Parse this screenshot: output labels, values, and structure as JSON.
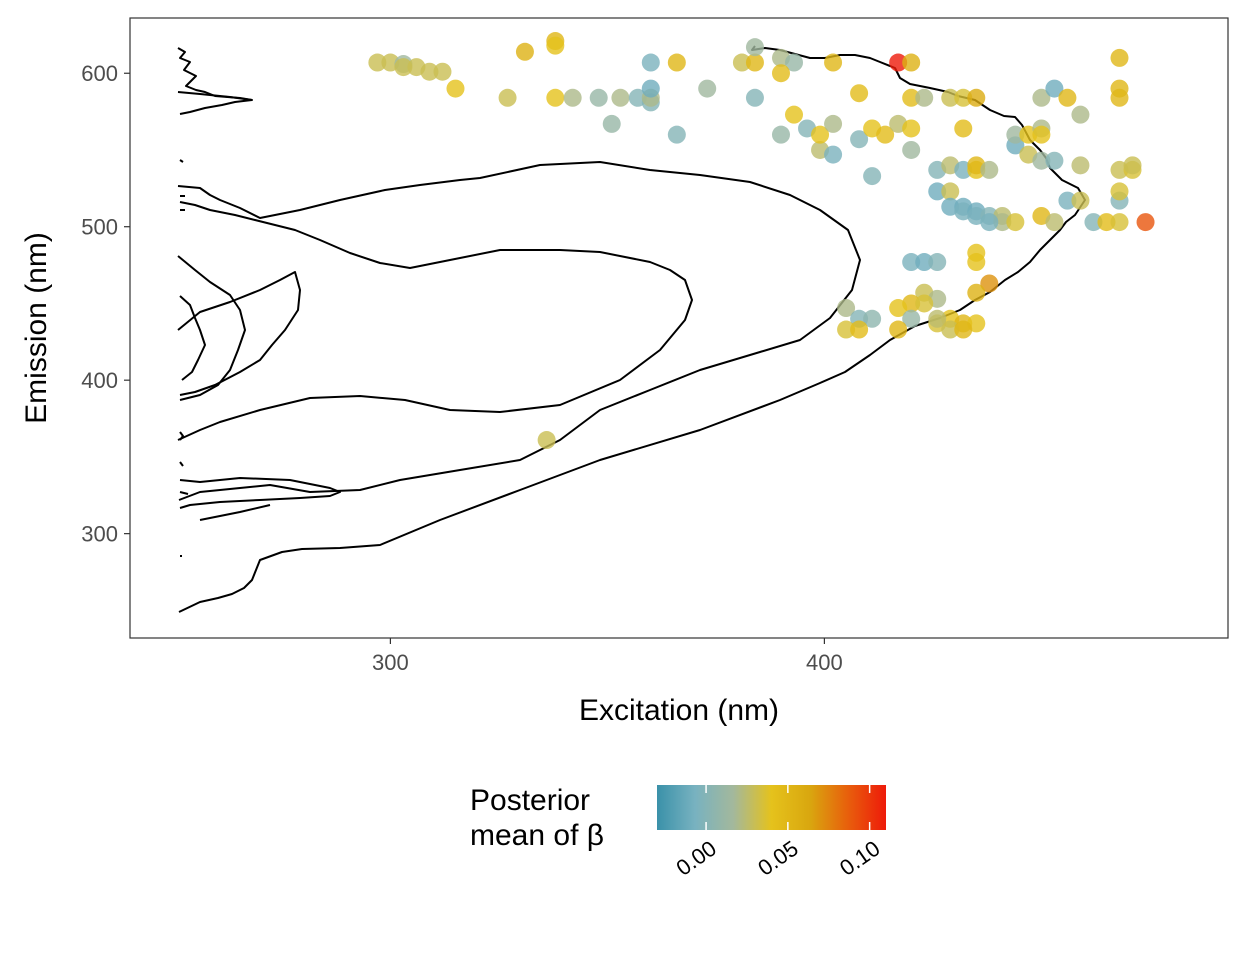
{
  "chart_data": {
    "type": "scatter",
    "xlabel": "Excitation (nm)",
    "ylabel": "Emission (nm)",
    "xlim": [
      240,
      493
    ],
    "ylim": [
      232,
      636
    ],
    "x_ticks": [
      300,
      400
    ],
    "y_ticks": [
      300,
      400,
      500,
      600
    ],
    "grid": false,
    "legend": {
      "title_lines": [
        "Posterior",
        "mean of β"
      ],
      "placement": "bottom",
      "range": [
        -0.03,
        0.11
      ],
      "ticks": [
        0.0,
        0.05,
        0.1
      ],
      "tick_labels": [
        "0.00",
        "0.05",
        "0.10"
      ],
      "colors": [
        "#3a91a9",
        "#78b2c0",
        "#a3b89c",
        "#e5c21c",
        "#d9a70f",
        "#e85f0c",
        "#ee1a0a"
      ]
    },
    "points": [
      {
        "x": 297,
        "y": 607,
        "b": 0.03
      },
      {
        "x": 300,
        "y": 607,
        "b": 0.03
      },
      {
        "x": 303,
        "y": 606,
        "b": 0.015
      },
      {
        "x": 303,
        "y": 604,
        "b": 0.03
      },
      {
        "x": 306,
        "y": 604,
        "b": 0.03
      },
      {
        "x": 309,
        "y": 601,
        "b": 0.03
      },
      {
        "x": 312,
        "y": 601,
        "b": 0.03
      },
      {
        "x": 315,
        "y": 590,
        "b": 0.04
      },
      {
        "x": 331,
        "y": 614,
        "b": 0.055
      },
      {
        "x": 338,
        "y": 621,
        "b": 0.05
      },
      {
        "x": 338,
        "y": 618,
        "b": 0.04
      },
      {
        "x": 327,
        "y": 584,
        "b": 0.03
      },
      {
        "x": 338,
        "y": 584,
        "b": 0.04
      },
      {
        "x": 342,
        "y": 584,
        "b": 0.02
      },
      {
        "x": 348,
        "y": 584,
        "b": 0.01
      },
      {
        "x": 353,
        "y": 584,
        "b": 0.02
      },
      {
        "x": 357,
        "y": 584,
        "b": 0.0
      },
      {
        "x": 360,
        "y": 581,
        "b": 0.0
      },
      {
        "x": 360,
        "y": 584,
        "b": 0.02
      },
      {
        "x": 360,
        "y": 607,
        "b": -0.005
      },
      {
        "x": 360,
        "y": 590,
        "b": -0.01
      },
      {
        "x": 351,
        "y": 567,
        "b": 0.01
      },
      {
        "x": 366,
        "y": 607,
        "b": 0.05
      },
      {
        "x": 366,
        "y": 560,
        "b": 0.0
      },
      {
        "x": 373,
        "y": 590,
        "b": 0.015
      },
      {
        "x": 381,
        "y": 607,
        "b": 0.03
      },
      {
        "x": 384,
        "y": 607,
        "b": 0.05
      },
      {
        "x": 384,
        "y": 617,
        "b": 0.015
      },
      {
        "x": 384,
        "y": 584,
        "b": 0.0
      },
      {
        "x": 390,
        "y": 610,
        "b": 0.02
      },
      {
        "x": 393,
        "y": 607,
        "b": 0.01
      },
      {
        "x": 390,
        "y": 600,
        "b": 0.045
      },
      {
        "x": 390,
        "y": 560,
        "b": 0.01
      },
      {
        "x": 393,
        "y": 573,
        "b": 0.04
      },
      {
        "x": 396,
        "y": 564,
        "b": 0.0
      },
      {
        "x": 399,
        "y": 550,
        "b": 0.025
      },
      {
        "x": 399,
        "y": 560,
        "b": 0.04
      },
      {
        "x": 402,
        "y": 567,
        "b": 0.02
      },
      {
        "x": 402,
        "y": 607,
        "b": 0.05
      },
      {
        "x": 402,
        "y": 547,
        "b": -0.005
      },
      {
        "x": 408,
        "y": 587,
        "b": 0.045
      },
      {
        "x": 408,
        "y": 557,
        "b": 0.0
      },
      {
        "x": 411,
        "y": 564,
        "b": 0.04
      },
      {
        "x": 414,
        "y": 560,
        "b": 0.045
      },
      {
        "x": 411,
        "y": 533,
        "b": 0.0
      },
      {
        "x": 417,
        "y": 607,
        "b": 0.11
      },
      {
        "x": 420,
        "y": 607,
        "b": 0.055
      },
      {
        "x": 417,
        "y": 567,
        "b": 0.025
      },
      {
        "x": 420,
        "y": 564,
        "b": 0.04
      },
      {
        "x": 420,
        "y": 550,
        "b": 0.015
      },
      {
        "x": 420,
        "y": 584,
        "b": 0.045
      },
      {
        "x": 423,
        "y": 584,
        "b": 0.02
      },
      {
        "x": 429,
        "y": 584,
        "b": 0.03
      },
      {
        "x": 432,
        "y": 584,
        "b": 0.035
      },
      {
        "x": 435,
        "y": 584,
        "b": 0.06
      },
      {
        "x": 432,
        "y": 564,
        "b": 0.045
      },
      {
        "x": 426,
        "y": 537,
        "b": 0.0
      },
      {
        "x": 426,
        "y": 523,
        "b": -0.01
      },
      {
        "x": 429,
        "y": 540,
        "b": 0.025
      },
      {
        "x": 429,
        "y": 523,
        "b": 0.03
      },
      {
        "x": 429,
        "y": 513,
        "b": -0.01
      },
      {
        "x": 432,
        "y": 537,
        "b": -0.005
      },
      {
        "x": 432,
        "y": 513,
        "b": -0.01
      },
      {
        "x": 432,
        "y": 510,
        "b": -0.005
      },
      {
        "x": 435,
        "y": 537,
        "b": 0.04
      },
      {
        "x": 435,
        "y": 540,
        "b": 0.05
      },
      {
        "x": 438,
        "y": 537,
        "b": 0.02
      },
      {
        "x": 435,
        "y": 510,
        "b": -0.01
      },
      {
        "x": 435,
        "y": 507,
        "b": -0.005
      },
      {
        "x": 438,
        "y": 507,
        "b": 0.0
      },
      {
        "x": 441,
        "y": 507,
        "b": 0.025
      },
      {
        "x": 441,
        "y": 503,
        "b": 0.02
      },
      {
        "x": 444,
        "y": 503,
        "b": 0.035
      },
      {
        "x": 438,
        "y": 503,
        "b": -0.005
      },
      {
        "x": 444,
        "y": 553,
        "b": -0.01
      },
      {
        "x": 444,
        "y": 560,
        "b": 0.015
      },
      {
        "x": 447,
        "y": 560,
        "b": 0.04
      },
      {
        "x": 450,
        "y": 564,
        "b": 0.02
      },
      {
        "x": 450,
        "y": 560,
        "b": 0.04
      },
      {
        "x": 447,
        "y": 547,
        "b": 0.03
      },
      {
        "x": 450,
        "y": 543,
        "b": 0.015
      },
      {
        "x": 453,
        "y": 543,
        "b": 0.0
      },
      {
        "x": 450,
        "y": 584,
        "b": 0.02
      },
      {
        "x": 453,
        "y": 590,
        "b": -0.01
      },
      {
        "x": 456,
        "y": 584,
        "b": 0.05
      },
      {
        "x": 459,
        "y": 573,
        "b": 0.02
      },
      {
        "x": 459,
        "y": 540,
        "b": 0.025
      },
      {
        "x": 450,
        "y": 507,
        "b": 0.05
      },
      {
        "x": 453,
        "y": 503,
        "b": 0.025
      },
      {
        "x": 456,
        "y": 517,
        "b": -0.005
      },
      {
        "x": 459,
        "y": 517,
        "b": 0.03
      },
      {
        "x": 462,
        "y": 503,
        "b": 0.0
      },
      {
        "x": 465,
        "y": 503,
        "b": 0.045
      },
      {
        "x": 468,
        "y": 503,
        "b": 0.035
      },
      {
        "x": 468,
        "y": 517,
        "b": 0.0
      },
      {
        "x": 468,
        "y": 523,
        "b": 0.035
      },
      {
        "x": 468,
        "y": 537,
        "b": 0.03
      },
      {
        "x": 471,
        "y": 537,
        "b": 0.035
      },
      {
        "x": 471,
        "y": 540,
        "b": 0.03
      },
      {
        "x": 468,
        "y": 610,
        "b": 0.05
      },
      {
        "x": 468,
        "y": 590,
        "b": 0.05
      },
      {
        "x": 468,
        "y": 584,
        "b": 0.05
      },
      {
        "x": 474,
        "y": 503,
        "b": 0.09
      },
      {
        "x": 420,
        "y": 477,
        "b": -0.005
      },
      {
        "x": 423,
        "y": 477,
        "b": -0.01
      },
      {
        "x": 426,
        "y": 477,
        "b": 0.0
      },
      {
        "x": 435,
        "y": 483,
        "b": 0.04
      },
      {
        "x": 435,
        "y": 477,
        "b": 0.04
      },
      {
        "x": 438,
        "y": 463,
        "b": 0.07
      },
      {
        "x": 435,
        "y": 457,
        "b": 0.055
      },
      {
        "x": 423,
        "y": 457,
        "b": 0.03
      },
      {
        "x": 426,
        "y": 453,
        "b": 0.02
      },
      {
        "x": 420,
        "y": 450,
        "b": 0.05
      },
      {
        "x": 423,
        "y": 450,
        "b": 0.035
      },
      {
        "x": 417,
        "y": 447,
        "b": 0.04
      },
      {
        "x": 420,
        "y": 440,
        "b": 0.01
      },
      {
        "x": 426,
        "y": 437,
        "b": 0.035
      },
      {
        "x": 429,
        "y": 440,
        "b": 0.04
      },
      {
        "x": 432,
        "y": 437,
        "b": 0.05
      },
      {
        "x": 435,
        "y": 437,
        "b": 0.04
      },
      {
        "x": 426,
        "y": 440,
        "b": 0.025
      },
      {
        "x": 429,
        "y": 433,
        "b": 0.03
      },
      {
        "x": 432,
        "y": 433,
        "b": 0.05
      },
      {
        "x": 417,
        "y": 433,
        "b": 0.05
      },
      {
        "x": 405,
        "y": 447,
        "b": 0.02
      },
      {
        "x": 408,
        "y": 440,
        "b": 0.0
      },
      {
        "x": 411,
        "y": 440,
        "b": 0.005
      },
      {
        "x": 405,
        "y": 433,
        "b": 0.035
      },
      {
        "x": 408,
        "y": 433,
        "b": 0.045
      },
      {
        "x": 336,
        "y": 361,
        "b": 0.03
      }
    ]
  }
}
